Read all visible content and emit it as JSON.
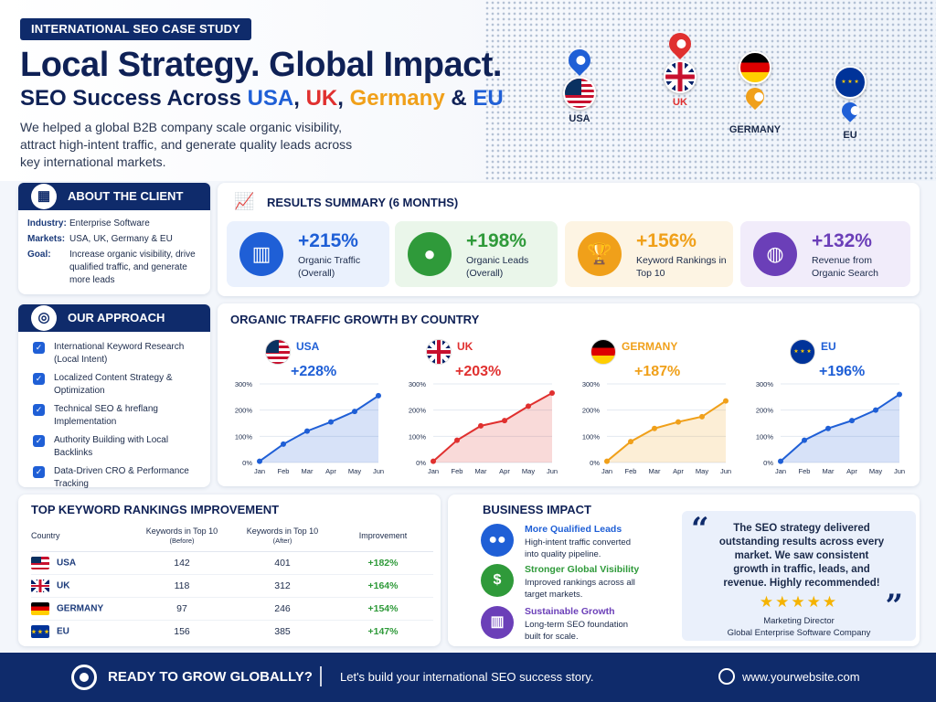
{
  "header": {
    "badge": "INTERNATIONAL SEO CASE STUDY",
    "headline": "Local Strategy. Global Impact.",
    "subhead_prefix": "SEO Success Across ",
    "subhead_usa": "USA",
    "subhead_sep1": ", ",
    "subhead_uk": "UK",
    "subhead_sep2": ", ",
    "subhead_de": "Germany",
    "subhead_amp": " & ",
    "subhead_eu": "EU",
    "intro": "We helped a global B2B company scale organic visibility, attract high-intent traffic, and generate quality leads across key international markets.",
    "map_labels": {
      "usa": "USA",
      "uk": "UK",
      "germany": "GERMANY",
      "eu": "EU"
    }
  },
  "client": {
    "title": "ABOUT THE CLIENT",
    "rows": [
      {
        "k": "Industry:",
        "v": "Enterprise Software"
      },
      {
        "k": "Markets:",
        "v": "USA, UK, Germany & EU"
      },
      {
        "k": "Goal:",
        "v": "Increase organic visibility, drive qualified traffic, and generate more leads"
      }
    ]
  },
  "approach": {
    "title": "OUR APPROACH",
    "items": [
      "International Keyword Research (Local Intent)",
      "Localized Content Strategy & Optimization",
      "Technical SEO & hreflang Implementation",
      "Authority Building with Local Backlinks",
      "Data-Driven CRO & Performance Tracking"
    ]
  },
  "results": {
    "title": "RESULTS SUMMARY (6 MONTHS)",
    "metrics": [
      {
        "value": "+215%",
        "label": "Organic Traffic (Overall)",
        "color": "#1f5fd6",
        "bg": "#eaf1fd",
        "icon": "bar-chart-icon"
      },
      {
        "value": "+198%",
        "label": "Organic Leads (Overall)",
        "color": "#2f9a3a",
        "bg": "#eaf6ea",
        "icon": "user-icon"
      },
      {
        "value": "+156%",
        "label": "Keyword Rankings in Top 10",
        "color": "#f0a01a",
        "bg": "#fdf4e3",
        "icon": "trophy-icon"
      },
      {
        "value": "+132%",
        "label": "Revenue from Organic Search",
        "color": "#6b3fb8",
        "bg": "#f1ecfa",
        "icon": "globe-icon"
      }
    ]
  },
  "growth": {
    "title": "ORGANIC TRAFFIC GROWTH BY COUNTRY"
  },
  "chart_data": [
    {
      "type": "area",
      "title": "USA",
      "subtitle": "+228%",
      "categories": [
        "Jan",
        "Feb",
        "Mar",
        "Apr",
        "May",
        "Jun"
      ],
      "yticks": [
        "0%",
        "100%",
        "200%",
        "300%"
      ],
      "ylim": [
        0,
        300
      ],
      "color": "#1f5fd6",
      "values": [
        5,
        70,
        120,
        155,
        195,
        255
      ]
    },
    {
      "type": "area",
      "title": "UK",
      "subtitle": "+203%",
      "categories": [
        "Jan",
        "Feb",
        "Mar",
        "Apr",
        "May",
        "Jun"
      ],
      "yticks": [
        "0%",
        "100%",
        "200%",
        "300%"
      ],
      "ylim": [
        0,
        300
      ],
      "color": "#e0302f",
      "values": [
        5,
        85,
        140,
        160,
        215,
        265
      ]
    },
    {
      "type": "area",
      "title": "GERMANY",
      "subtitle": "+187%",
      "categories": [
        "Jan",
        "Feb",
        "Mar",
        "Apr",
        "May",
        "Jun"
      ],
      "yticks": [
        "0%",
        "100%",
        "200%",
        "300%"
      ],
      "ylim": [
        0,
        300
      ],
      "color": "#f0a01a",
      "values": [
        5,
        80,
        130,
        155,
        175,
        235
      ]
    },
    {
      "type": "area",
      "title": "EU",
      "subtitle": "+196%",
      "categories": [
        "Jan",
        "Feb",
        "Mar",
        "Apr",
        "May",
        "Jun"
      ],
      "yticks": [
        "0%",
        "100%",
        "200%",
        "300%"
      ],
      "ylim": [
        0,
        300
      ],
      "color": "#1f5fd6",
      "values": [
        5,
        85,
        130,
        160,
        200,
        260
      ]
    }
  ],
  "keywords": {
    "title": "TOP KEYWORD RANKINGS IMPROVEMENT",
    "headers": [
      "Country",
      "Keywords in Top 10",
      "(Before)",
      "Keywords in Top 10",
      "(After)",
      "Improvement"
    ],
    "rows": [
      {
        "country": "USA",
        "before": "142",
        "after": "401",
        "improvement": "+182%"
      },
      {
        "country": "UK",
        "before": "118",
        "after": "312",
        "improvement": "+164%"
      },
      {
        "country": "GERMANY",
        "before": "97",
        "after": "246",
        "improvement": "+154%"
      },
      {
        "country": "EU",
        "before": "156",
        "after": "385",
        "improvement": "+147%"
      }
    ]
  },
  "impact": {
    "title": "BUSINESS IMPACT",
    "items": [
      {
        "title": "More Qualified Leads",
        "desc": "High-intent traffic converted into quality pipeline.",
        "color": "#1f5fd6",
        "icon": "users-icon"
      },
      {
        "title": "Stronger Global Visibility",
        "desc": "Improved rankings across all target markets.",
        "color": "#2f9a3a",
        "icon": "dollar-icon"
      },
      {
        "title": "Sustainable Growth",
        "desc": "Long-term SEO foundation built for scale.",
        "color": "#6b3fb8",
        "icon": "growth-chart-icon"
      }
    ]
  },
  "testimonial": {
    "quote": "The SEO strategy delivered outstanding results across every market. We saw consistent growth in traffic, leads, and revenue. Highly recommended!",
    "stars": "★★★★★",
    "author": "Marketing Director",
    "company": "Global Enterprise Software Company"
  },
  "footer": {
    "cta": "READY TO GROW GLOBALLY?",
    "tagline": "Let's build your international SEO success story.",
    "url": "www.yourwebsite.com"
  }
}
